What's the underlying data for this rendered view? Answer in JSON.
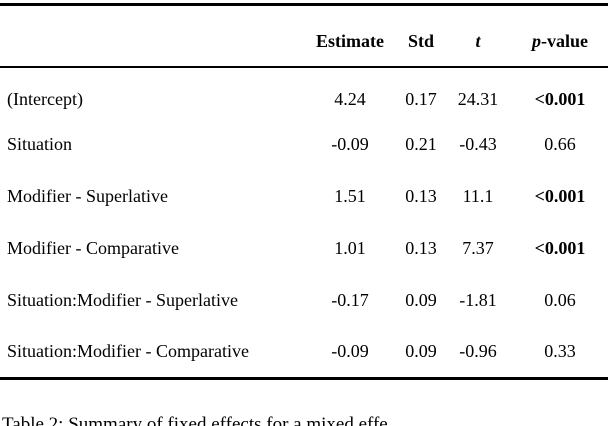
{
  "table": {
    "header": {
      "term": "",
      "estimate": "Estimate",
      "std": "Std",
      "t": "t",
      "p_prefix": "p",
      "p_suffix": "-value"
    },
    "rows": [
      {
        "label": "(Intercept)",
        "estimate": "4.24",
        "std": "0.17",
        "t": "24.31",
        "p": "<0.001",
        "significant": true
      },
      {
        "label": "Situation",
        "estimate": "-0.09",
        "std": "0.21",
        "t": "-0.43",
        "p": "0.66",
        "significant": false
      },
      {
        "label": "Modifier - Superlative",
        "estimate": "1.51",
        "std": "0.13",
        "t": "11.1",
        "p": "<0.001",
        "significant": true
      },
      {
        "label": "Modifier - Comparative",
        "estimate": "1.01",
        "std": "0.13",
        "t": "7.37",
        "p": "<0.001",
        "significant": true
      },
      {
        "label": "Situation:Modifier - Superlative",
        "estimate": "-0.17",
        "std": "0.09",
        "t": "-1.81",
        "p": "0.06",
        "significant": false
      },
      {
        "label": "Situation:Modifier - Comparative",
        "estimate": "-0.09",
        "std": "0.09",
        "t": "-0.96",
        "p": "0.33",
        "significant": false
      }
    ]
  },
  "caption": {
    "text": "Table 2: Summary of fixed effects for a mixed effe"
  },
  "colors": {
    "background": "#ffffff",
    "text": "#000000",
    "rule": "#000000"
  }
}
